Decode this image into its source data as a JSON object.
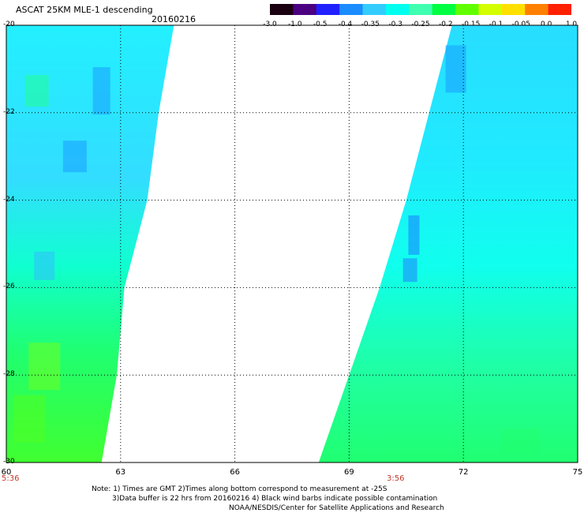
{
  "header": {
    "title": "ASCAT 25KM MLE-1 descending",
    "date": "20160216"
  },
  "colorbar": {
    "labels": [
      "-3.0",
      "-1.0",
      "-0.5",
      "-0.4",
      "-0.35",
      "-0.3",
      "-0.25",
      "-0.2",
      "-0.15",
      "-0.1",
      "-0.05",
      "0.0",
      "1.0"
    ],
    "colors": [
      "#1a0010",
      "#4a0080",
      "#2020ff",
      "#1a8cff",
      "#33ccff",
      "#00ffee",
      "#40ffb0",
      "#00ff40",
      "#60ff00",
      "#d4ff00",
      "#ffe000",
      "#ff8000",
      "#ff2000"
    ]
  },
  "chart_data": {
    "type": "heatmap",
    "xlabel": "",
    "ylabel": "",
    "x_ticks": [
      "60",
      "63",
      "66",
      "69",
      "72",
      "75"
    ],
    "y_ticks": [
      "-20",
      "-22",
      "-24",
      "-26",
      "-28",
      "-30"
    ],
    "xlim": [
      60,
      75
    ],
    "ylim": [
      -30,
      -20
    ],
    "grid": true,
    "swaths": [
      {
        "name": "west",
        "time_label": "5:36",
        "lon_min": 60,
        "lat_range": [
          -30,
          -20
        ],
        "east_edge": [
          [
            -20,
            64.4
          ],
          [
            -22,
            64.0
          ],
          [
            -24,
            63.7
          ],
          [
            -26,
            63.1
          ],
          [
            -28,
            62.9
          ],
          [
            -30,
            62.5
          ]
        ]
      },
      {
        "name": "east",
        "time_label": "3:56",
        "lon_max": 75,
        "lat_range": [
          -30,
          -20
        ],
        "west_edge": [
          [
            -20,
            71.7
          ],
          [
            -22,
            71.1
          ],
          [
            -24,
            70.5
          ],
          [
            -26,
            69.8
          ],
          [
            -28,
            69.0
          ],
          [
            -30,
            68.2
          ]
        ]
      }
    ]
  },
  "notes": {
    "line1": "Note: 1) Times are GMT 2)Times along bottom correspond to measurement at -25S",
    "line2": "3)Data buffer is 22 hrs from 20160216 4) Black wind barbs indicate possible contamination",
    "line3": "NOAA/NESDIS/Center for Satellite Applications and Research"
  }
}
